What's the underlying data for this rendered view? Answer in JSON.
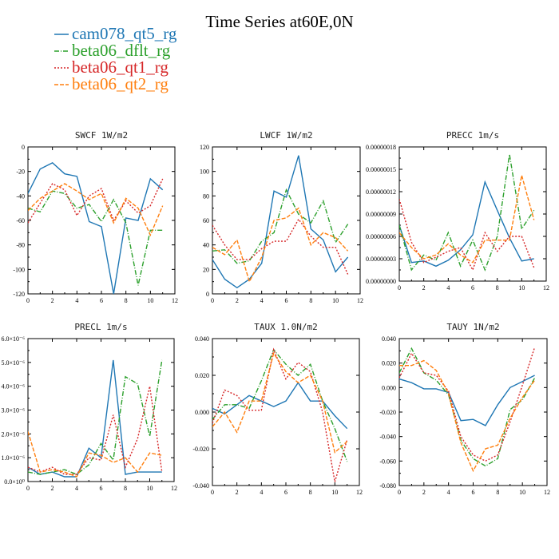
{
  "title": "Time Series at60E,0N",
  "legend": [
    {
      "name": "cam078_qt5_rg",
      "color": "#1f77b4",
      "dash": ""
    },
    {
      "name": "beta06_dflt_rg",
      "color": "#2ca02c",
      "dash": "6,2,1,2"
    },
    {
      "name": "beta06_qt1_rg",
      "color": "#d62728",
      "dash": "2,2"
    },
    {
      "name": "beta06_qt2_rg",
      "color": "#ff7f0e",
      "dash": "5,2"
    }
  ],
  "chart_data": [
    {
      "type": "line",
      "title": "SWCF  1W/m2",
      "x": [
        0,
        1,
        2,
        3,
        4,
        5,
        6,
        7,
        8,
        9,
        10,
        11
      ],
      "xlim": [
        0,
        12
      ],
      "xticks": [
        "0",
        "2",
        "4",
        "6",
        "8",
        "10",
        "12"
      ],
      "ylim": [
        -120,
        0
      ],
      "yticks": [
        -120,
        -100,
        -80,
        -60,
        -40,
        -20,
        0
      ],
      "ytick_labels": [
        "-120",
        "-100",
        "-80",
        "-60",
        "-40",
        "-20",
        "0"
      ],
      "series": [
        {
          "values": [
            -38,
            -18,
            -13,
            -22,
            -24,
            -61,
            -65,
            -120,
            -58,
            -60,
            -26,
            -35
          ]
        },
        {
          "values": [
            -50,
            -53,
            -36,
            -38,
            -50,
            -47,
            -61,
            -43,
            -62,
            -113,
            -68,
            -68
          ]
        },
        {
          "values": [
            -62,
            -46,
            -30,
            -35,
            -56,
            -40,
            -34,
            -60,
            -44,
            -54,
            -48,
            -26
          ]
        },
        {
          "values": [
            -52,
            -42,
            -36,
            -30,
            -36,
            -43,
            -38,
            -62,
            -42,
            -50,
            -72,
            -48
          ]
        }
      ]
    },
    {
      "type": "line",
      "title": "LWCF  1W/m2",
      "x": [
        0,
        1,
        2,
        3,
        4,
        5,
        6,
        7,
        8,
        9,
        10,
        11
      ],
      "xlim": [
        0,
        12
      ],
      "xticks": [
        "0",
        "2",
        "4",
        "6",
        "8",
        "10",
        "12"
      ],
      "ylim": [
        0,
        120
      ],
      "yticks": [
        0,
        20,
        40,
        60,
        80,
        100,
        120
      ],
      "ytick_labels": [
        "0",
        "20",
        "40",
        "60",
        "80",
        "100",
        "120"
      ],
      "series": [
        {
          "values": [
            28,
            12,
            5,
            12,
            25,
            84,
            79,
            113,
            53,
            44,
            18,
            30
          ]
        },
        {
          "values": [
            35,
            36,
            25,
            27,
            43,
            50,
            85,
            65,
            58,
            76,
            42,
            57
          ]
        },
        {
          "values": [
            56,
            40,
            28,
            28,
            37,
            43,
            43,
            61,
            47,
            38,
            38,
            16
          ]
        },
        {
          "values": [
            38,
            32,
            44,
            10,
            30,
            60,
            62,
            70,
            40,
            50,
            46,
            35
          ]
        }
      ]
    },
    {
      "type": "line",
      "title": "PRECC  1m/s",
      "x": [
        0,
        1,
        2,
        3,
        4,
        5,
        6,
        7,
        8,
        9,
        10,
        11
      ],
      "xlim": [
        0,
        12
      ],
      "xticks": [
        "0",
        "2",
        "4",
        "6",
        "8",
        "10",
        "12"
      ],
      "ylim": [
        0,
        1.8e-07
      ],
      "yticks": [
        0,
        3e-08,
        6e-08,
        9e-08,
        1.2e-07,
        1.5e-07,
        1.8e-07
      ],
      "ytick_labels": [
        "0.00000000",
        "0.00000003",
        "0.00000006",
        "0.00000009",
        "0.00000012",
        "0.00000015",
        "0.00000018"
      ],
      "series": [
        {
          "values": [
            7.5e-08,
            2.5e-08,
            2.7e-08,
            2e-08,
            2.8e-08,
            4.2e-08,
            6.2e-08,
            1.33e-07,
            9.5e-08,
            5.8e-08,
            2.7e-08,
            3e-08
          ]
        },
        {
          "values": [
            7.5e-08,
            1.5e-08,
            3.5e-08,
            2.8e-08,
            6.5e-08,
            2e-08,
            5.5e-08,
            1.5e-08,
            6e-08,
            1.7e-07,
            7e-08,
            9.5e-08
          ]
        },
        {
          "values": [
            1.1e-07,
            5.2e-08,
            2.5e-08,
            3.2e-08,
            4e-08,
            4.5e-08,
            1.5e-08,
            6.5e-08,
            4e-08,
            6e-08,
            6e-08,
            1.8e-08
          ]
        },
        {
          "values": [
            6.5e-08,
            4.5e-08,
            3e-08,
            3.5e-08,
            5e-08,
            3.5e-08,
            2.5e-08,
            5.5e-08,
            5.5e-08,
            5.5e-08,
            1.42e-07,
            8.2e-08
          ]
        }
      ]
    },
    {
      "type": "line",
      "title": "PRECL  1m/s",
      "x": [
        0,
        1,
        2,
        3,
        4,
        5,
        6,
        7,
        8,
        9,
        10,
        11
      ],
      "xlim": [
        0,
        12
      ],
      "xticks": [
        "0",
        "2",
        "4",
        "6",
        "8",
        "10",
        "12"
      ],
      "ylim": [
        0,
        6e-06
      ],
      "yticks": [
        0,
        1e-06,
        2e-06,
        3e-06,
        4e-06,
        5e-06,
        6e-06
      ],
      "ytick_labels": [
        "0.0×10⁰",
        "1.0×10⁻⁶",
        "2.0×10⁻⁶",
        "3.0×10⁻⁶",
        "4.0×10⁻⁶",
        "5.0×10⁻⁶",
        "6.0×10⁻⁶"
      ],
      "series": [
        {
          "values": [
            6e-07,
            3e-07,
            4e-07,
            2e-07,
            2e-07,
            1.4e-06,
            1e-06,
            5.1e-06,
            3e-07,
            4e-07,
            4e-07,
            4e-07
          ]
        },
        {
          "values": [
            4e-07,
            3e-07,
            4e-07,
            5e-07,
            3e-07,
            7e-07,
            1.6e-06,
            9e-07,
            4.4e-06,
            4.1e-06,
            1.9e-06,
            5.1e-06
          ]
        },
        {
          "values": [
            6e-07,
            4e-07,
            6e-07,
            3e-07,
            3e-07,
            1e-06,
            9e-07,
            2.8e-06,
            6e-07,
            1.8e-06,
            4e-06,
            4e-07
          ]
        },
        {
          "values": [
            2.1e-06,
            4e-07,
            5e-07,
            4e-07,
            2e-07,
            1.2e-06,
            1.1e-06,
            8e-07,
            1e-06,
            4e-07,
            1.2e-06,
            1.1e-06
          ]
        }
      ]
    },
    {
      "type": "line",
      "title": "TAUX  1.0N/m2",
      "x": [
        0,
        1,
        2,
        3,
        4,
        5,
        6,
        7,
        8,
        9,
        10,
        11
      ],
      "xlim": [
        0,
        12
      ],
      "xticks": [
        "0",
        "2",
        "4",
        "6",
        "8",
        "10",
        "12"
      ],
      "ylim": [
        -0.04,
        0.04
      ],
      "yticks": [
        -0.04,
        -0.02,
        0,
        0.02,
        0.04
      ],
      "ytick_labels": [
        "-0.040",
        "-0.020",
        "0.000",
        "0.020",
        "0.040"
      ],
      "series": [
        {
          "values": [
            0.002,
            -0.001,
            0.004,
            0.009,
            0.006,
            0.003,
            0.006,
            0.016,
            0.006,
            0.006,
            -0.002,
            -0.009
          ]
        },
        {
          "values": [
            -0.004,
            0.004,
            0.004,
            0.002,
            0.017,
            0.034,
            0.026,
            0.02,
            0.026,
            0.006,
            -0.009,
            -0.027
          ]
        },
        {
          "values": [
            -0.006,
            0.012,
            0.009,
            0.001,
            0.001,
            0.034,
            0.018,
            0.027,
            0.022,
            0.0,
            -0.038,
            -0.015
          ]
        },
        {
          "values": [
            -0.008,
            0.0,
            -0.011,
            0.006,
            0.006,
            0.032,
            0.022,
            0.016,
            0.02,
            0.006,
            -0.022,
            -0.016
          ]
        }
      ]
    },
    {
      "type": "line",
      "title": "TAUY  1N/m2",
      "x": [
        0,
        1,
        2,
        3,
        4,
        5,
        6,
        7,
        8,
        9,
        10,
        11
      ],
      "xlim": [
        0,
        12
      ],
      "xticks": [
        "0",
        "2",
        "4",
        "6",
        "8",
        "10",
        "12"
      ],
      "ylim": [
        -0.08,
        0.04
      ],
      "yticks": [
        -0.08,
        -0.06,
        -0.04,
        -0.02,
        0,
        0.02,
        0.04
      ],
      "ytick_labels": [
        "-0.080",
        "-0.060",
        "-0.040",
        "-0.020",
        "0.000",
        "0.020",
        "0.040"
      ],
      "series": [
        {
          "values": [
            0.007,
            0.004,
            -0.001,
            -0.001,
            -0.004,
            -0.027,
            -0.026,
            -0.031,
            -0.014,
            0.0,
            0.005,
            0.01
          ]
        },
        {
          "values": [
            0.012,
            0.032,
            0.012,
            0.006,
            -0.006,
            -0.043,
            -0.058,
            -0.064,
            -0.058,
            -0.018,
            -0.01,
            0.008
          ]
        },
        {
          "values": [
            0.008,
            0.028,
            0.012,
            0.01,
            -0.003,
            -0.04,
            -0.055,
            -0.06,
            -0.055,
            -0.028,
            0.002,
            0.033
          ]
        },
        {
          "values": [
            0.018,
            0.018,
            0.022,
            0.014,
            -0.005,
            -0.045,
            -0.068,
            -0.05,
            -0.047,
            -0.025,
            -0.008,
            0.006
          ]
        }
      ]
    }
  ]
}
